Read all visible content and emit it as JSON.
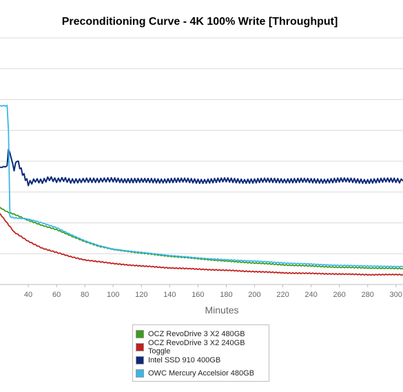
{
  "chart_data": {
    "type": "line",
    "title": "Preconditioning Curve - 4K 100% Write [Throughput]",
    "xlabel": "Minutes",
    "ylabel": "",
    "xlim": [
      20,
      305
    ],
    "ylim": [
      0,
      400
    ],
    "x_ticks": [
      40,
      60,
      80,
      100,
      120,
      140,
      160,
      180,
      200,
      220,
      240,
      260,
      280,
      300
    ],
    "grid": true,
    "legend_position": "bottom-center",
    "series": [
      {
        "name": "OCZ RevoDrive 3 X2 480GB",
        "color": "#3a9e1a",
        "x": [
          20,
          25,
          30,
          40,
          50,
          60,
          70,
          80,
          90,
          100,
          120,
          140,
          160,
          180,
          200,
          220,
          240,
          260,
          280,
          300,
          305
        ],
        "y": [
          125,
          118,
          114,
          104,
          96,
          89,
          79,
          70,
          62,
          57,
          51,
          46,
          42,
          38,
          35,
          32,
          30,
          28,
          27,
          26,
          26
        ]
      },
      {
        "name": "OCZ RevoDrive 3 X2 240GB Toggle",
        "color": "#c0221f",
        "x": [
          20,
          25,
          30,
          40,
          50,
          60,
          70,
          80,
          90,
          100,
          120,
          140,
          160,
          180,
          200,
          220,
          240,
          260,
          280,
          300,
          305
        ],
        "y": [
          115,
          100,
          85,
          70,
          59,
          52,
          45,
          40,
          37,
          34,
          30,
          27,
          25,
          23,
          21,
          19,
          18,
          17,
          16,
          16,
          16
        ]
      },
      {
        "name": "Intel SSD 910 400GB",
        "color": "#0c2a7a",
        "x": [
          20,
          25,
          26,
          28,
          30,
          32,
          34,
          36,
          38,
          40,
          45,
          50,
          55,
          60,
          65,
          70,
          80,
          90,
          100,
          120,
          140,
          160,
          180,
          200,
          220,
          240,
          260,
          280,
          300,
          305
        ],
        "y": [
          190,
          192,
          220,
          205,
          185,
          202,
          190,
          180,
          172,
          164,
          170,
          168,
          172,
          168,
          170,
          168,
          170,
          168,
          170,
          168,
          169,
          168,
          169,
          168,
          169,
          168,
          169,
          168,
          169,
          168
        ]
      },
      {
        "name": "OWC Mercury Accelsior 480GB",
        "color": "#3ab6ea",
        "x": [
          20,
          25,
          26,
          27,
          30,
          40,
          50,
          60,
          70,
          80,
          90,
          100,
          120,
          140,
          160,
          180,
          200,
          220,
          240,
          260,
          280,
          300,
          305
        ],
        "y": [
          290,
          290,
          250,
          110,
          108,
          106,
          100,
          92,
          81,
          71,
          63,
          57,
          52,
          47,
          43,
          40,
          38,
          35,
          33,
          31,
          30,
          29,
          29
        ]
      }
    ]
  }
}
